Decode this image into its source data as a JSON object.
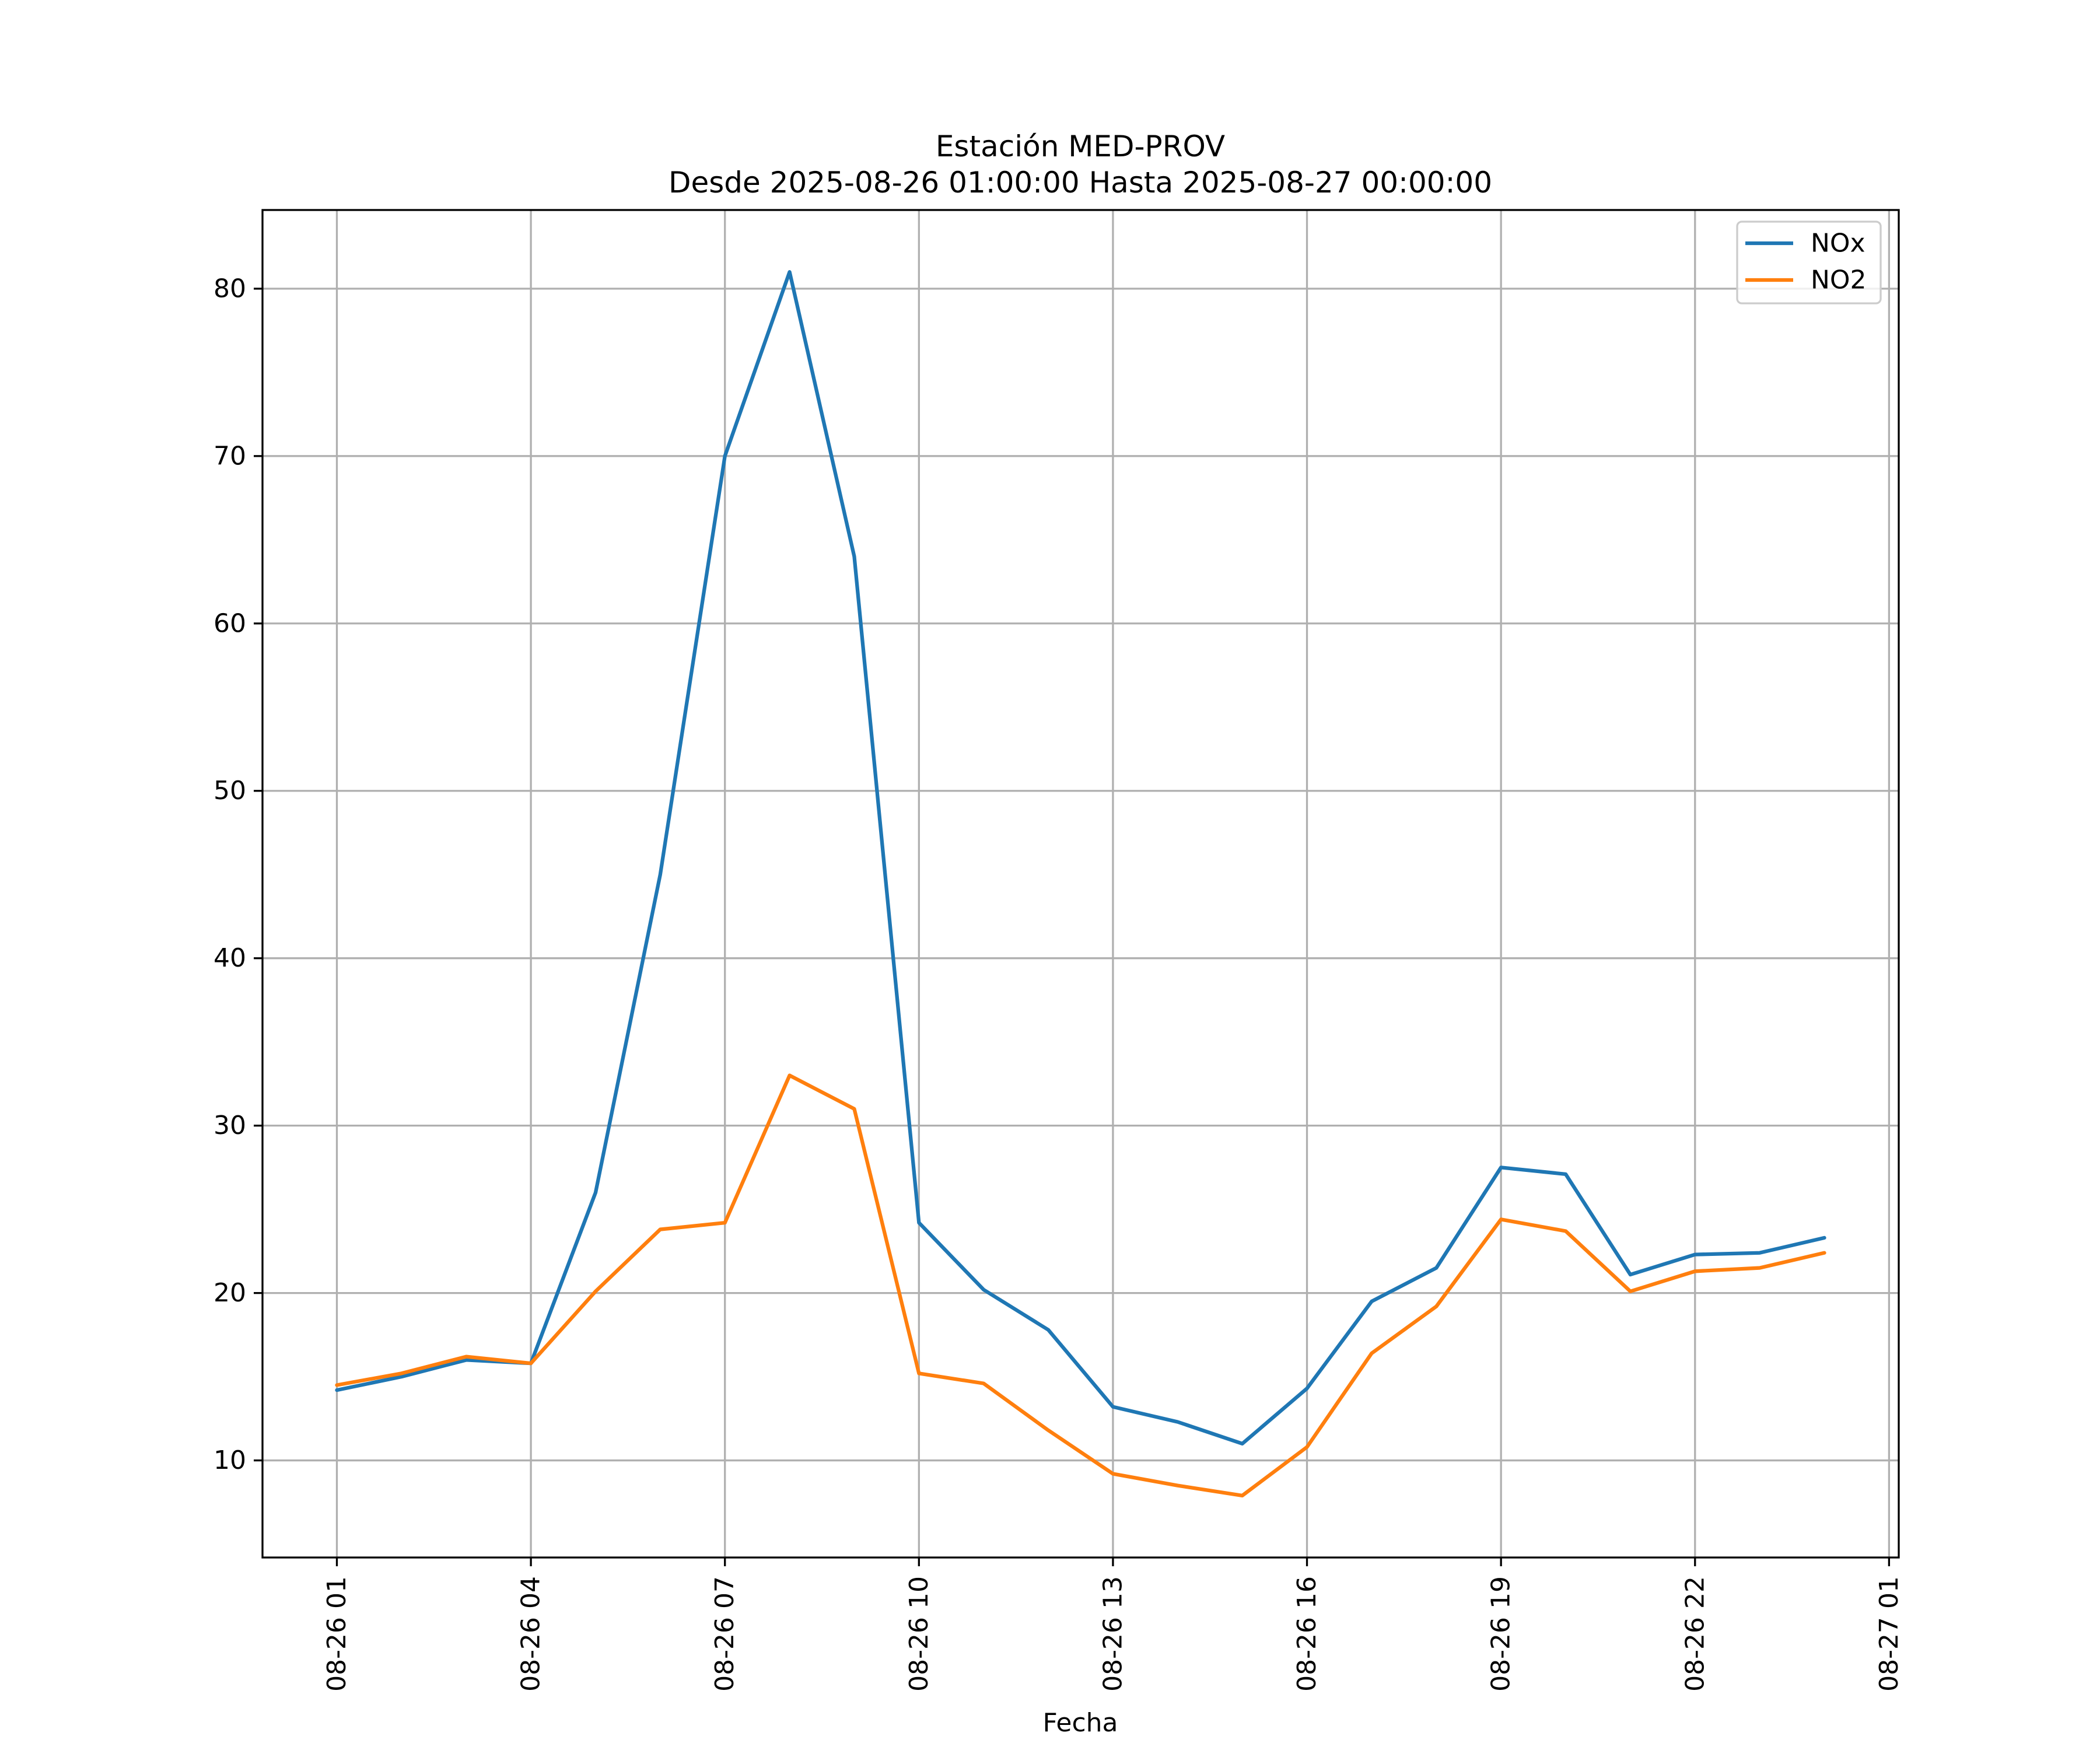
{
  "title": "Estación MED-PROV",
  "subtitle": "Desde 2025-08-26 01:00:00 Hasta 2025-08-27 00:00:00",
  "xlabel": "Fecha",
  "legend": {
    "position": "upper right",
    "entries": [
      {
        "label": "NOx",
        "color": "#1f77b4"
      },
      {
        "label": "NO2",
        "color": "#ff7f0e"
      }
    ]
  },
  "colors": {
    "nox": "#1f77b4",
    "no2": "#ff7f0e",
    "grid": "#b0b0b0",
    "spine": "#000000",
    "background": "#ffffff"
  },
  "chart_data": {
    "type": "line",
    "title": "Estación MED-PROV",
    "subtitle": "Desde 2025-08-26 01:00:00 Hasta 2025-08-27 00:00:00",
    "xlabel": "Fecha",
    "ylabel": "",
    "grid": true,
    "legend_position": "upper right",
    "x": [
      "2025-08-26 01:00",
      "2025-08-26 02:00",
      "2025-08-26 03:00",
      "2025-08-26 04:00",
      "2025-08-26 05:00",
      "2025-08-26 06:00",
      "2025-08-26 07:00",
      "2025-08-26 08:00",
      "2025-08-26 09:00",
      "2025-08-26 10:00",
      "2025-08-26 11:00",
      "2025-08-26 12:00",
      "2025-08-26 13:00",
      "2025-08-26 14:00",
      "2025-08-26 15:00",
      "2025-08-26 16:00",
      "2025-08-26 17:00",
      "2025-08-26 18:00",
      "2025-08-26 19:00",
      "2025-08-26 20:00",
      "2025-08-26 21:00",
      "2025-08-26 22:00",
      "2025-08-26 23:00",
      "2025-08-27 00:00"
    ],
    "x_hours": [
      0,
      1,
      2,
      3,
      4,
      5,
      6,
      7,
      8,
      9,
      10,
      11,
      12,
      13,
      14,
      15,
      16,
      17,
      18,
      19,
      20,
      21,
      22,
      23
    ],
    "series": [
      {
        "name": "NOx",
        "color": "#1f77b4",
        "values": [
          14.2,
          15.0,
          16.0,
          15.8,
          26.0,
          45.0,
          70.0,
          81.0,
          64.0,
          24.2,
          20.2,
          17.8,
          13.2,
          12.3,
          11.0,
          14.3,
          19.5,
          21.5,
          27.5,
          27.1,
          21.1,
          22.3,
          22.4,
          23.3
        ]
      },
      {
        "name": "NO2",
        "color": "#ff7f0e",
        "values": [
          14.5,
          15.2,
          16.2,
          15.8,
          20.1,
          23.8,
          24.2,
          33.0,
          31.0,
          15.2,
          14.6,
          11.8,
          9.2,
          8.5,
          7.9,
          10.8,
          16.4,
          19.2,
          24.4,
          23.7,
          20.1,
          21.3,
          21.5,
          22.4
        ]
      }
    ],
    "ylim": [
      4.2,
      84.7
    ],
    "xlim_hours": [
      -1.15,
      24.15
    ],
    "y_ticks": [
      10,
      20,
      30,
      40,
      50,
      60,
      70,
      80
    ],
    "y_tick_labels": [
      "10",
      "20",
      "30",
      "40",
      "50",
      "60",
      "70",
      "80"
    ],
    "x_tick_hours": [
      0,
      3,
      6,
      9,
      12,
      15,
      18,
      21,
      24
    ],
    "x_tick_labels": [
      "08-26 01",
      "08-26 04",
      "08-26 07",
      "08-26 10",
      "08-26 13",
      "08-26 16",
      "08-26 19",
      "08-26 22",
      "08-27 01"
    ]
  }
}
